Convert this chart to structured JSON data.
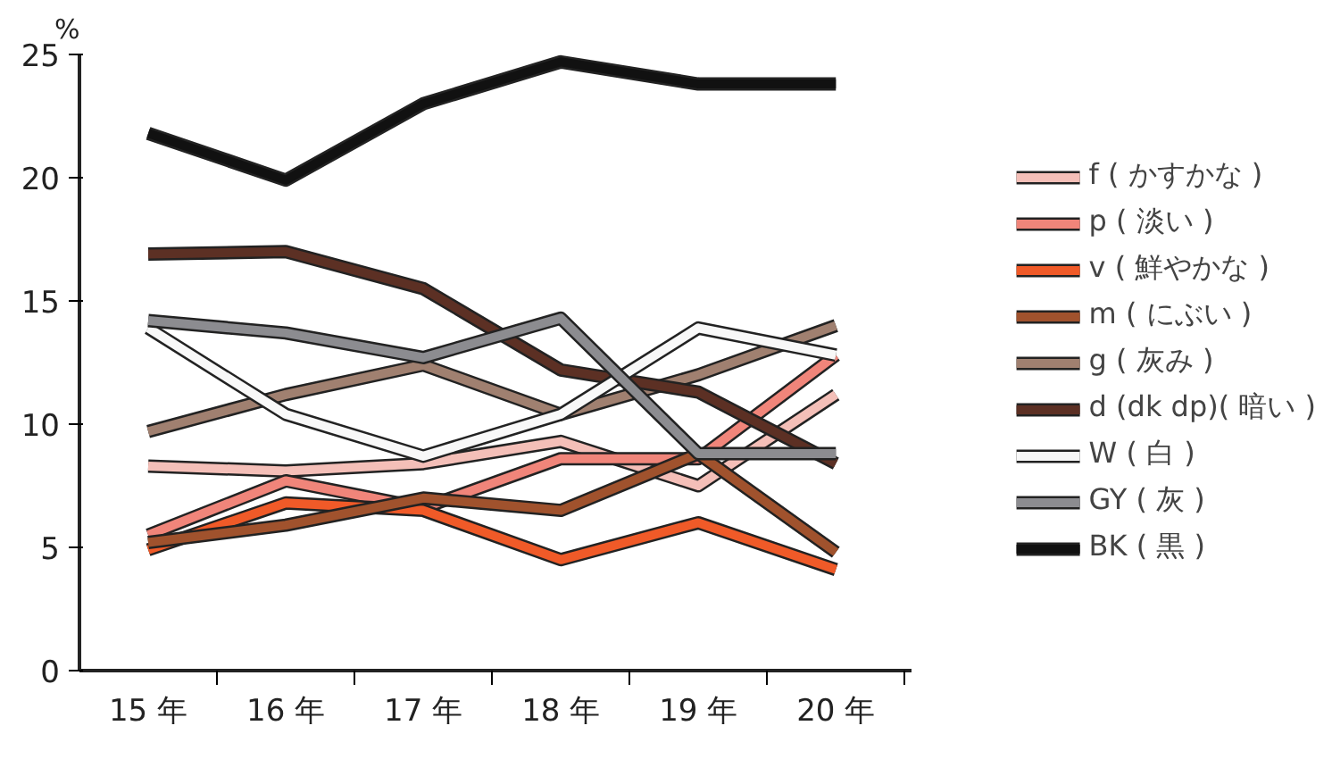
{
  "chart_data": {
    "type": "line",
    "ylabel": "%",
    "categories": [
      "15 年",
      "16 年",
      "17 年",
      "18 年",
      "19 年",
      "20 年"
    ],
    "ylim": [
      0,
      25
    ],
    "yticks": [
      0,
      5,
      10,
      15,
      20,
      25
    ],
    "grid": false,
    "legend": "right",
    "line_style": "solid",
    "marker": "none",
    "series": [
      {
        "name": "f ( かすかな )",
        "color": "#f4bfb8",
        "values": [
          8.3,
          8.1,
          8.4,
          9.3,
          7.5,
          11.2
        ]
      },
      {
        "name": "p ( 淡い )",
        "color": "#f0857a",
        "values": [
          5.5,
          7.7,
          6.6,
          8.6,
          8.6,
          12.8
        ]
      },
      {
        "name": "v ( 鮮やかな )",
        "color": "#f05a28",
        "values": [
          4.9,
          6.8,
          6.5,
          4.5,
          6.0,
          4.1
        ]
      },
      {
        "name": "m ( にぶい )",
        "color": "#a0522d",
        "values": [
          5.2,
          5.9,
          7.0,
          6.5,
          8.8,
          4.8
        ]
      },
      {
        "name": "g ( 灰み )",
        "color": "#a08070",
        "values": [
          9.7,
          11.2,
          12.4,
          10.4,
          12.0,
          14.0
        ]
      },
      {
        "name": "d (dk dp)( 暗い )",
        "color": "#5c3024",
        "values": [
          16.9,
          17.0,
          15.5,
          12.2,
          11.3,
          8.4
        ]
      },
      {
        "name": "W ( 白 )",
        "color": "#f8f8f8",
        "values": [
          13.9,
          10.4,
          8.7,
          10.4,
          13.9,
          12.8
        ]
      },
      {
        "name": "GY ( 灰 )",
        "color": "#8c8c90",
        "values": [
          14.2,
          13.7,
          12.7,
          14.3,
          8.8,
          8.8
        ]
      },
      {
        "name": "BK ( 黒 )",
        "color": "#111111",
        "values": [
          21.8,
          19.9,
          23.0,
          24.7,
          23.8,
          23.8
        ]
      }
    ]
  }
}
